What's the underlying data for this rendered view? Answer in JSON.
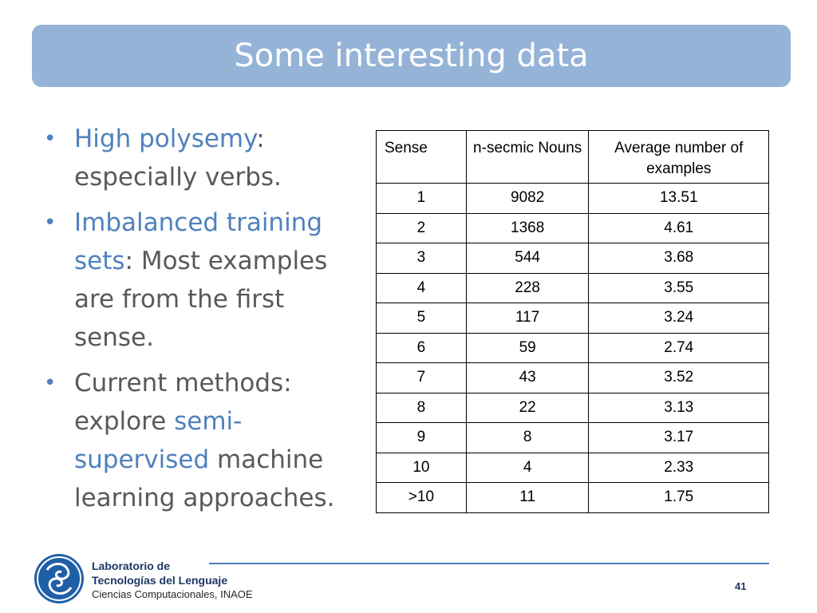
{
  "slide": {
    "title": "Some interesting data",
    "page_number": "41"
  },
  "bullets": [
    {
      "parts": [
        {
          "text": "High polysemy",
          "hl": true
        },
        {
          "text": ": especially verbs.",
          "hl": false
        }
      ]
    },
    {
      "parts": [
        {
          "text": "Imbalanced training sets",
          "hl": true
        },
        {
          "text": ": Most examples are from the first sense.",
          "hl": false
        }
      ]
    },
    {
      "parts": [
        {
          "text": "Current methods: explore ",
          "hl": false
        },
        {
          "text": "semi-supervised",
          "hl": true
        },
        {
          "text": " machine learning approaches.",
          "hl": false
        }
      ]
    }
  ],
  "table": {
    "headers": [
      "Sense",
      "n-secmic Nouns",
      "Average number of examples"
    ],
    "rows": [
      [
        "1",
        "9082",
        "13.51"
      ],
      [
        "2",
        "1368",
        "4.61"
      ],
      [
        "3",
        "544",
        "3.68"
      ],
      [
        "4",
        "228",
        "3.55"
      ],
      [
        "5",
        "117",
        "3.24"
      ],
      [
        "6",
        "59",
        "2.74"
      ],
      [
        "7",
        "43",
        "3.52"
      ],
      [
        "8",
        "22",
        "3.13"
      ],
      [
        "9",
        "8",
        "3.17"
      ],
      [
        "10",
        "4",
        "2.33"
      ],
      [
        ">10",
        "11",
        "1.75"
      ]
    ]
  },
  "footer": {
    "line1": "Laboratorio de",
    "line2": "Tecnologías del Lenguaje",
    "line3": "Ciencias Computacionales, INAOE",
    "logo_icon": "spiral-logo-icon"
  },
  "colors": {
    "title_bar": "#95b3d7",
    "accent": "#4f81bd",
    "body_text": "#595959"
  }
}
